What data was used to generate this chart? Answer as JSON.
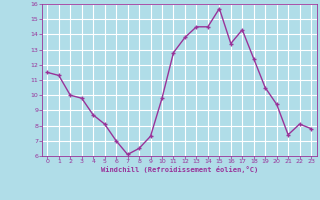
{
  "x": [
    0,
    1,
    2,
    3,
    4,
    5,
    6,
    7,
    8,
    9,
    10,
    11,
    12,
    13,
    14,
    15,
    16,
    17,
    18,
    19,
    20,
    21,
    22,
    23
  ],
  "y": [
    11.5,
    11.3,
    10.0,
    9.8,
    8.7,
    8.1,
    7.0,
    6.1,
    6.5,
    7.3,
    9.8,
    12.8,
    13.8,
    14.5,
    14.5,
    15.7,
    13.4,
    14.3,
    12.4,
    10.5,
    9.4,
    7.4,
    8.1,
    7.8
  ],
  "line_color": "#993399",
  "marker_color": "#993399",
  "bg_color": "#b0dde8",
  "grid_color": "#ffffff",
  "xlabel": "Windchill (Refroidissement éolien,°C)",
  "xlabel_color": "#993399",
  "tick_color": "#993399",
  "ylim": [
    6,
    16
  ],
  "xlim_min": -0.5,
  "xlim_max": 23.5,
  "yticks": [
    6,
    7,
    8,
    9,
    10,
    11,
    12,
    13,
    14,
    15,
    16
  ],
  "xticks": [
    0,
    1,
    2,
    3,
    4,
    5,
    6,
    7,
    8,
    9,
    10,
    11,
    12,
    13,
    14,
    15,
    16,
    17,
    18,
    19,
    20,
    21,
    22,
    23
  ]
}
